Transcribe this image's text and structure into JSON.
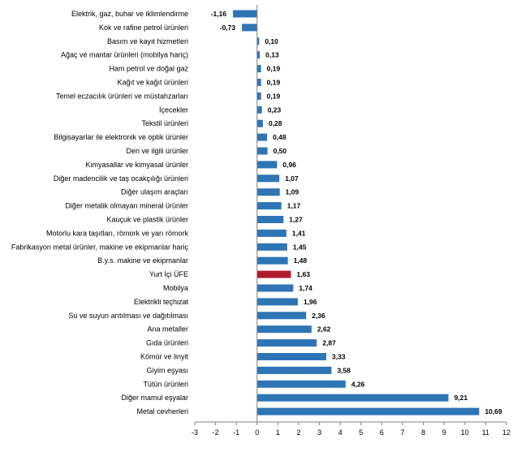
{
  "chart_data": {
    "type": "bar",
    "orientation": "horizontal",
    "title": "",
    "xlabel": "",
    "ylabel": "",
    "xlim": [
      -3,
      12
    ],
    "xticks": [
      -3,
      -2,
      -1,
      0,
      1,
      2,
      3,
      4,
      5,
      6,
      7,
      8,
      9,
      10,
      11,
      12
    ],
    "grid": false,
    "legend": false,
    "colors": {
      "default": "#2e75b6",
      "highlight": "#b01c2e",
      "axis": "#7f7f7f"
    },
    "highlight_category": "Yurt İçi ÜFE",
    "categories": [
      "Elektrik, gaz, buhar ve iklimlendirme",
      "Kok ve rafine petrol ürünleri",
      "Basım ve kayıt hizmetleri",
      "Ağaç ve mantar ürünleri (mobilya hariç)",
      "Ham petrol ve doğal gaz",
      "Kağıt ve kağıt ürünleri",
      "Temel eczacılık ürünleri ve müstahzarları",
      "İçecekler",
      "Tekstil ürünleri",
      "Bilgisayarlar ile elektronik ve optik ürünler",
      "Deri ve ilgili ürünler",
      "Kimyasallar ve kimyasal ürünler",
      "Diğer madencilik ve taş ocakçılığı ürünleri",
      "Diğer ulaşım araçları",
      "Diğer metalik olmayan mineral ürünler",
      "Kauçuk ve plastik ürünler",
      "Motorlu kara taşıtları, römork ve yarı römork",
      "Fabrikasyon metal ürünler, makine ve ekipmanlar hariç",
      "B.y.s. makine ve ekipmanlar",
      "Yurt İçi ÜFE",
      "Mobilya",
      "Elektrikli teçhizat",
      "Su ve suyun arıtılması ve dağıtılması",
      "Ana metaller",
      "Gıda ürünleri",
      "Kömür ve linyit",
      "Giyim eşyası",
      "Tütün ürünleri",
      "Diğer mamul eşyalar",
      "Metal cevherleri"
    ],
    "values": [
      -1.16,
      -0.73,
      0.1,
      0.13,
      0.19,
      0.19,
      0.19,
      0.23,
      0.28,
      0.48,
      0.5,
      0.96,
      1.07,
      1.09,
      1.17,
      1.27,
      1.41,
      1.45,
      1.48,
      1.63,
      1.74,
      1.96,
      2.36,
      2.62,
      2.87,
      3.33,
      3.58,
      4.26,
      9.21,
      10.69
    ],
    "value_labels": [
      "-1,16",
      "-0,73",
      "0,10",
      "0,13",
      "0,19",
      "0,19",
      "0,19",
      "0,23",
      "0,28",
      "0,48",
      "0,50",
      "0,96",
      "1,07",
      "1,09",
      "1,17",
      "1,27",
      "1,41",
      "1,45",
      "1,48",
      "1,63",
      "1,74",
      "1,96",
      "2,36",
      "2,62",
      "2,87",
      "3,33",
      "3,58",
      "4,26",
      "9,21",
      "10,69"
    ]
  }
}
